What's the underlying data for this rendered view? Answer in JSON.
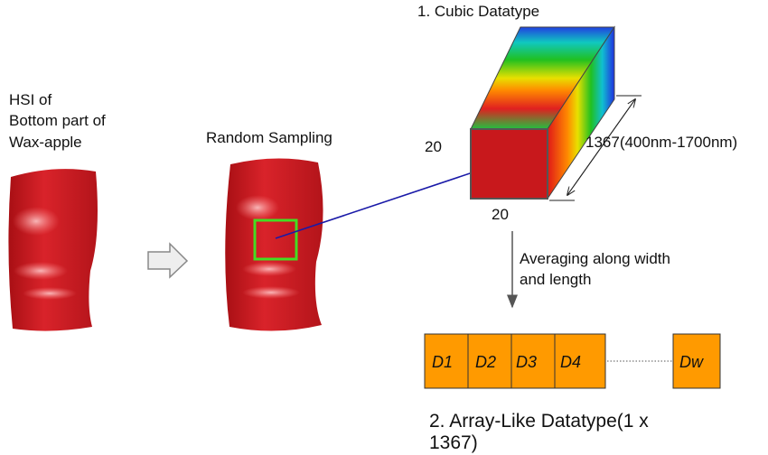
{
  "hsi_label": [
    "HSI of",
    "Bottom part of",
    "Wax-apple"
  ],
  "sampling_label": "Random Sampling",
  "cube": {
    "title": "1. Cubic Datatype",
    "height": "20",
    "width": "20",
    "depth": "1367(400nm-1700nm)"
  },
  "averaging_label": [
    "Averaging along width",
    "and length"
  ],
  "array": {
    "cells": [
      "D1",
      "D2",
      "D3",
      "D4",
      "Dw"
    ],
    "title": [
      "2. Array-Like Datatype(1 x",
      "1367)"
    ]
  }
}
